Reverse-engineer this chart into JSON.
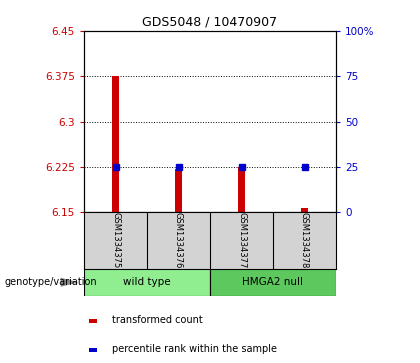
{
  "title": "GDS5048 / 10470907",
  "samples": [
    "GSM1334375",
    "GSM1334376",
    "GSM1334377",
    "GSM1334378"
  ],
  "red_values": [
    6.375,
    6.222,
    6.225,
    6.157
  ],
  "blue_values": [
    6.225,
    6.225,
    6.225,
    6.225
  ],
  "ymin": 6.15,
  "ymax": 6.45,
  "yticks_left": [
    6.15,
    6.225,
    6.3,
    6.375,
    6.45
  ],
  "ytick_labels_left": [
    "6.15",
    "6.225",
    "6.3",
    "6.375",
    "6.45"
  ],
  "yticks_right": [
    0,
    25,
    50,
    75,
    100
  ],
  "ytick_labels_right": [
    "0",
    "25",
    "50",
    "75",
    "100%"
  ],
  "grid_lines": [
    6.225,
    6.3,
    6.375
  ],
  "group_labels": [
    "wild type",
    "HMGA2 null"
  ],
  "group_color_1": "#90EE90",
  "group_color_2": "#5DC85D",
  "bar_color": "#CC0000",
  "dot_color": "#0000CC",
  "label_color_left": "#CC0000",
  "label_color_right": "#0000CC",
  "legend_red": "transformed count",
  "legend_blue": "percentile rank within the sample",
  "genotype_label": "genotype/variation",
  "bar_width": 0.12
}
